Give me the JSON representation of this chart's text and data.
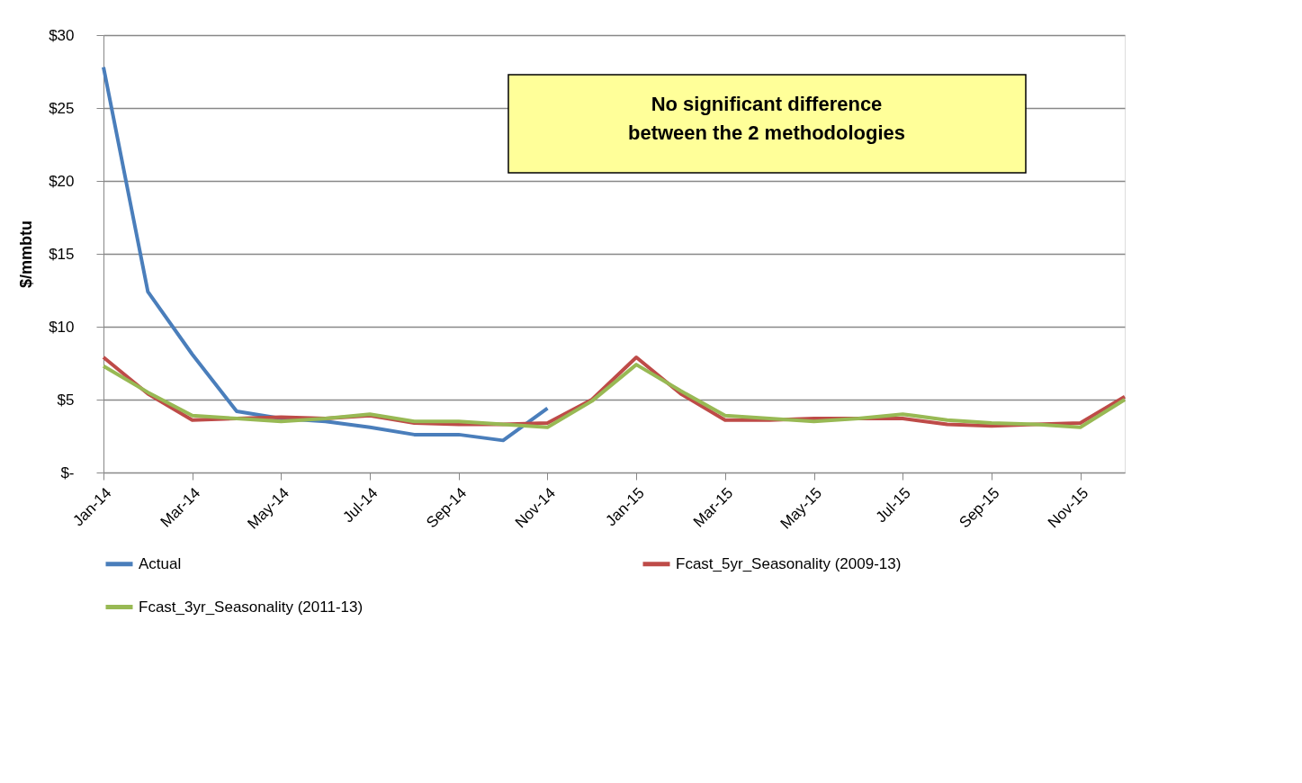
{
  "chart_data": {
    "type": "line",
    "ylabel": "$/mmbtu",
    "categories": [
      "Jan-14",
      null,
      "Mar-14",
      null,
      "May-14",
      null,
      "Jul-14",
      null,
      "Sep-14",
      null,
      "Nov-14",
      null,
      "Jan-15",
      null,
      "Mar-15",
      null,
      "May-15",
      null,
      "Jul-15",
      null,
      "Sep-15",
      null,
      "Nov-15",
      null
    ],
    "series": [
      {
        "name": "Actual",
        "color": "#4a7ebb",
        "values": [
          27.8,
          12.4,
          8.1,
          4.2,
          3.7,
          3.5,
          3.1,
          2.6,
          2.6,
          2.2,
          4.4,
          null,
          null,
          null,
          null,
          null,
          null,
          null,
          null,
          null,
          null,
          null,
          null,
          null
        ]
      },
      {
        "name": "Fcast_5yr_Seasonality (2009-13)",
        "color": "#be4b48",
        "values": [
          7.9,
          5.4,
          3.6,
          3.7,
          3.8,
          3.7,
          3.9,
          3.4,
          3.3,
          3.3,
          3.4,
          5.0,
          7.9,
          5.4,
          3.6,
          3.6,
          3.7,
          3.7,
          3.7,
          3.3,
          3.2,
          3.3,
          3.4,
          5.2
        ]
      },
      {
        "name": "Fcast_3yr_Seasonality (2011-13)",
        "color": "#98b954",
        "values": [
          7.3,
          5.5,
          3.9,
          3.7,
          3.5,
          3.7,
          4.0,
          3.5,
          3.5,
          3.3,
          3.1,
          4.9,
          7.4,
          5.6,
          3.9,
          3.7,
          3.5,
          3.7,
          4.0,
          3.6,
          3.4,
          3.3,
          3.1,
          5.0
        ]
      }
    ],
    "ylim": [
      0,
      30
    ],
    "yticks": [
      {
        "value": 0,
        "label": "$-"
      },
      {
        "value": 5,
        "label": "$5"
      },
      {
        "value": 10,
        "label": "$10"
      },
      {
        "value": 15,
        "label": "$15"
      },
      {
        "value": 20,
        "label": "$20"
      },
      {
        "value": 25,
        "label": "$25"
      },
      {
        "value": 30,
        "label": "$30"
      }
    ],
    "grid": "y",
    "legend": "bottom",
    "marker": "none",
    "line_style": "solid",
    "annotations": [
      "No significant difference\nbetween the 2 methodologies"
    ]
  }
}
